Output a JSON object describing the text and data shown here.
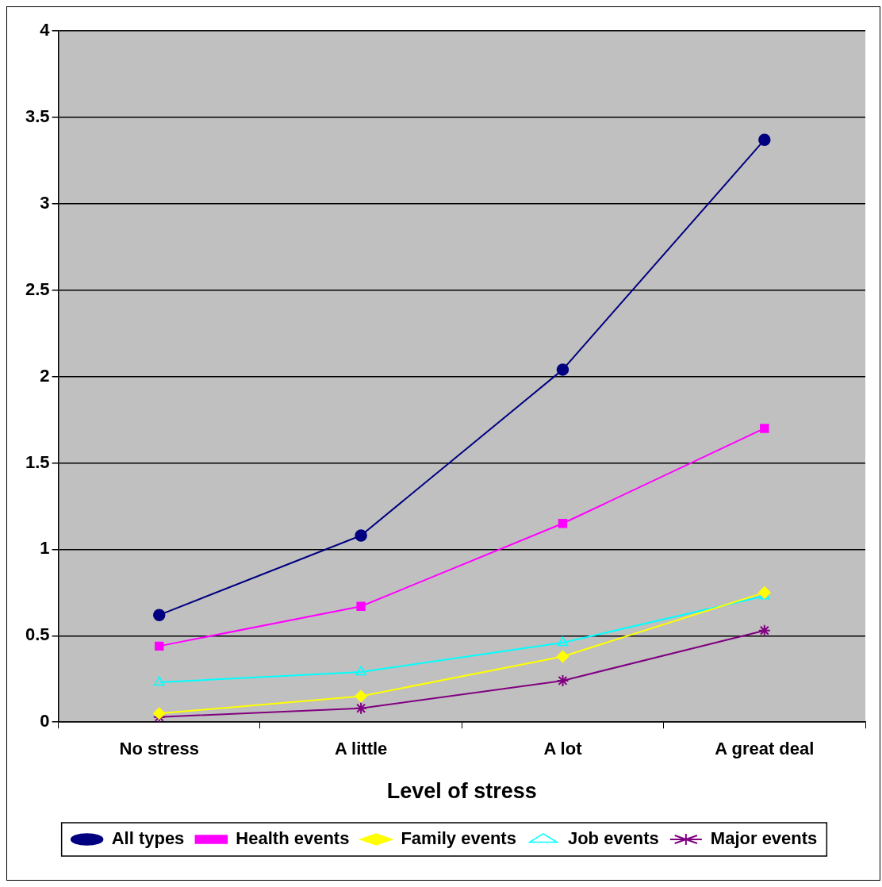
{
  "chart_data": {
    "type": "line",
    "xlabel": "Level of stress",
    "categories": [
      "No stress",
      "A little",
      "A lot",
      "A great deal"
    ],
    "series": [
      {
        "name": "All types",
        "color": "#000080",
        "marker": "circle",
        "values": [
          0.62,
          1.08,
          2.04,
          3.37
        ]
      },
      {
        "name": "Health events",
        "color": "#ff00ff",
        "marker": "square",
        "values": [
          0.44,
          0.67,
          1.15,
          1.7
        ]
      },
      {
        "name": "Family events",
        "color": "#ffff00",
        "marker": "diamond",
        "values": [
          0.05,
          0.15,
          0.38,
          0.75
        ]
      },
      {
        "name": "Job events",
        "color": "#00ffff",
        "marker": "triangle",
        "values": [
          0.23,
          0.29,
          0.46,
          0.73
        ]
      },
      {
        "name": "Major events",
        "color": "#800080",
        "marker": "cross",
        "values": [
          0.03,
          0.08,
          0.24,
          0.53
        ]
      }
    ],
    "ylim": [
      0,
      4
    ],
    "yticks": [
      0,
      0.5,
      1,
      1.5,
      2,
      2.5,
      3,
      3.5,
      4
    ],
    "grid": "y",
    "legend": "bottom"
  }
}
